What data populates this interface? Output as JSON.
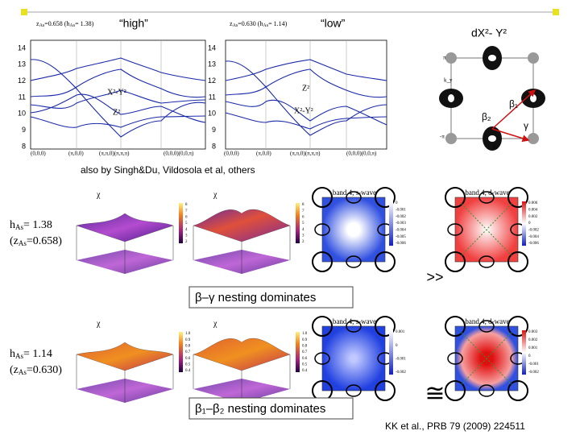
{
  "band_structure": {
    "yticks": [
      "14",
      "13",
      "12",
      "11",
      "10",
      "9",
      "8"
    ],
    "panels": [
      {
        "quote": "“high”",
        "z": "z",
        "z_sub": "As",
        "z_val": "=0.658  (",
        "h": "h",
        "h_sub": "As",
        "h_val": "= 1.38)",
        "labels": [
          "X²-Y²",
          "Z²"
        ],
        "kpath": [
          "(0,0,0)",
          "(π,0,0)",
          "(π,π,0)(π,π,π)",
          "(0,0,0)(0,0,π)"
        ]
      },
      {
        "quote": "“low”",
        "z": "z",
        "z_sub": "As",
        "z_val": "=0.630  (",
        "h": "h",
        "h_sub": "As",
        "h_val": "= 1.14)",
        "labels": [
          "Z²",
          "X²-Y²"
        ],
        "kpath": [
          "(0,0,0)",
          "(π,0,0)",
          "(π,π,0)(π,π,π)",
          "(0,0,0)(0,0,π)"
        ]
      }
    ]
  },
  "fermi_surface": {
    "title": "dX²- Y²",
    "labels": [
      "β₁",
      "β₂",
      "γ"
    ],
    "kx": "kₓ",
    "ky": "k_y",
    "pi": "π",
    "minus_pi": "-π"
  },
  "caption": "also by Singh&Du,  Vildosola et al,  others",
  "rows": [
    {
      "h": "h",
      "h_sub": "As",
      "h_val": "= 1.38",
      "z": "(z",
      "z_sub": "As",
      "z_val": "=0.658)",
      "chi": [
        "χ",
        "χ"
      ],
      "chi_ticks": [
        "8",
        "7",
        "6",
        "5",
        "4",
        "3",
        "2"
      ],
      "gap_titles": [
        "band 4, s-wave",
        "band 4, d-wave"
      ],
      "s_ticks": [
        "0",
        "-0.001",
        "-0.002",
        "-0.003",
        "-0.004",
        "-0.005",
        "-0.006"
      ],
      "d_ticks": [
        "0.006",
        "0.004",
        "0.002",
        "0",
        "-0.002",
        "-0.004",
        "-0.006"
      ],
      "nesting": "β–γ nesting dominates",
      "relation": ">>"
    },
    {
      "h": "h",
      "h_sub": "As",
      "h_val": "= 1.14",
      "z": "(z",
      "z_sub": "As",
      "z_val": "=0.630)",
      "chi": [
        "χ",
        "χ"
      ],
      "chi_ticks": [
        "1.0",
        "0.9",
        "0.8",
        "0.7",
        "0.6",
        "0.5",
        "0.4"
      ],
      "gap_titles": [
        "band 4, s-wave",
        "band 4, d-wave"
      ],
      "s_ticks": [
        "0.001",
        "0",
        "-0.001",
        "-0.002"
      ],
      "d_ticks": [
        "0.003",
        "0.002",
        "0.001",
        "0",
        "-0.001",
        "-0.002"
      ],
      "nesting": "β₁–β₂ nesting dominates",
      "relation": "≅"
    }
  ],
  "citation": "KK et al., PRB 79 (2009) 224511"
}
